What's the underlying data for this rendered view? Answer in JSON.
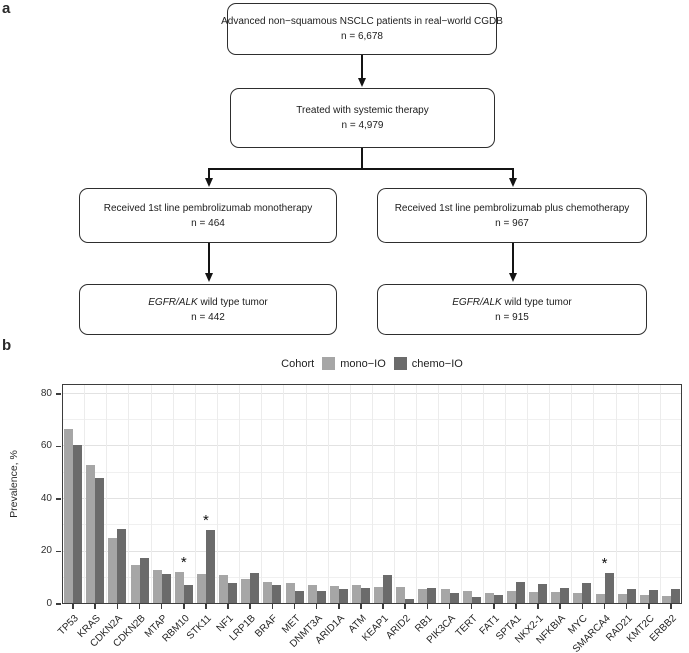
{
  "panel_a": {
    "label": "a",
    "boxes": [
      {
        "text": "Advanced non−squamous NSCLC patients in real−world CGDB",
        "n": "n = 6,678"
      },
      {
        "text": "Treated with systemic therapy",
        "n": "n = 4,979"
      },
      {
        "text": "Received 1st line pembrolizumab monotherapy",
        "n": "n = 464"
      },
      {
        "text": "Received 1st line pembrolizumab plus chemotherapy",
        "n": "n = 967"
      },
      {
        "italic": "EGFR/ALK",
        "text": " wild type tumor",
        "n": "n = 442"
      },
      {
        "italic": "EGFR/ALK",
        "text": " wild type tumor",
        "n": "n = 915"
      }
    ]
  },
  "panel_b": {
    "label": "b",
    "sig_marker": "*",
    "colors": {
      "mono": "#a6a6a6",
      "chemo": "#6b6b6b",
      "grid_major": "#e2e2e2",
      "grid_minor": "#f0f0f0"
    }
  },
  "chart_data": {
    "type": "bar",
    "title": "",
    "legend_title": "Cohort",
    "legend_position": "top",
    "ylabel": "Prevalence, %",
    "xlabel": "",
    "yticks": [
      0,
      20,
      40,
      60,
      80
    ],
    "ylim": [
      0,
      83.8
    ],
    "grid": true,
    "categories": [
      "TP53",
      "KRAS",
      "CDKN2A",
      "CDKN2B",
      "MTAP",
      "RBM10",
      "STK11",
      "NF1",
      "LRP1B",
      "BRAF",
      "MET",
      "DNMT3A",
      "ARID1A",
      "ATM",
      "KEAP1",
      "ARID2",
      "RB1",
      "PIK3CA",
      "TERT",
      "FAT1",
      "SPTA1",
      "NKX2-1",
      "NFKBIA",
      "MYC",
      "SMARCA4",
      "RAD21",
      "KMT2C",
      "ERBB2"
    ],
    "series": [
      {
        "name": "mono−IO",
        "color": "#a6a6a6",
        "values": [
          66.7,
          52.8,
          25.0,
          15.0,
          12.9,
          12.2,
          11.3,
          10.9,
          9.4,
          8.5,
          8.1,
          7.1,
          6.9,
          7.1,
          6.6,
          6.5,
          5.6,
          5.8,
          5.1,
          4.3,
          5.0,
          4.6,
          4.6,
          4.1,
          3.9,
          3.7,
          3.6,
          2.9
        ]
      },
      {
        "name": "chemo−IO",
        "color": "#6b6b6b",
        "values": [
          60.6,
          48.1,
          28.4,
          17.6,
          11.5,
          7.2,
          28.2,
          8.1,
          11.8,
          7.2,
          5.0,
          5.0,
          5.8,
          6.2,
          10.9,
          2.0,
          6.0,
          4.3,
          2.8,
          3.4,
          8.4,
          7.6,
          6.0,
          8.0,
          11.7,
          5.8,
          5.3,
          5.6
        ]
      }
    ],
    "significant_categories": [
      "RBM10",
      "STK11",
      "SMARCA4"
    ]
  }
}
